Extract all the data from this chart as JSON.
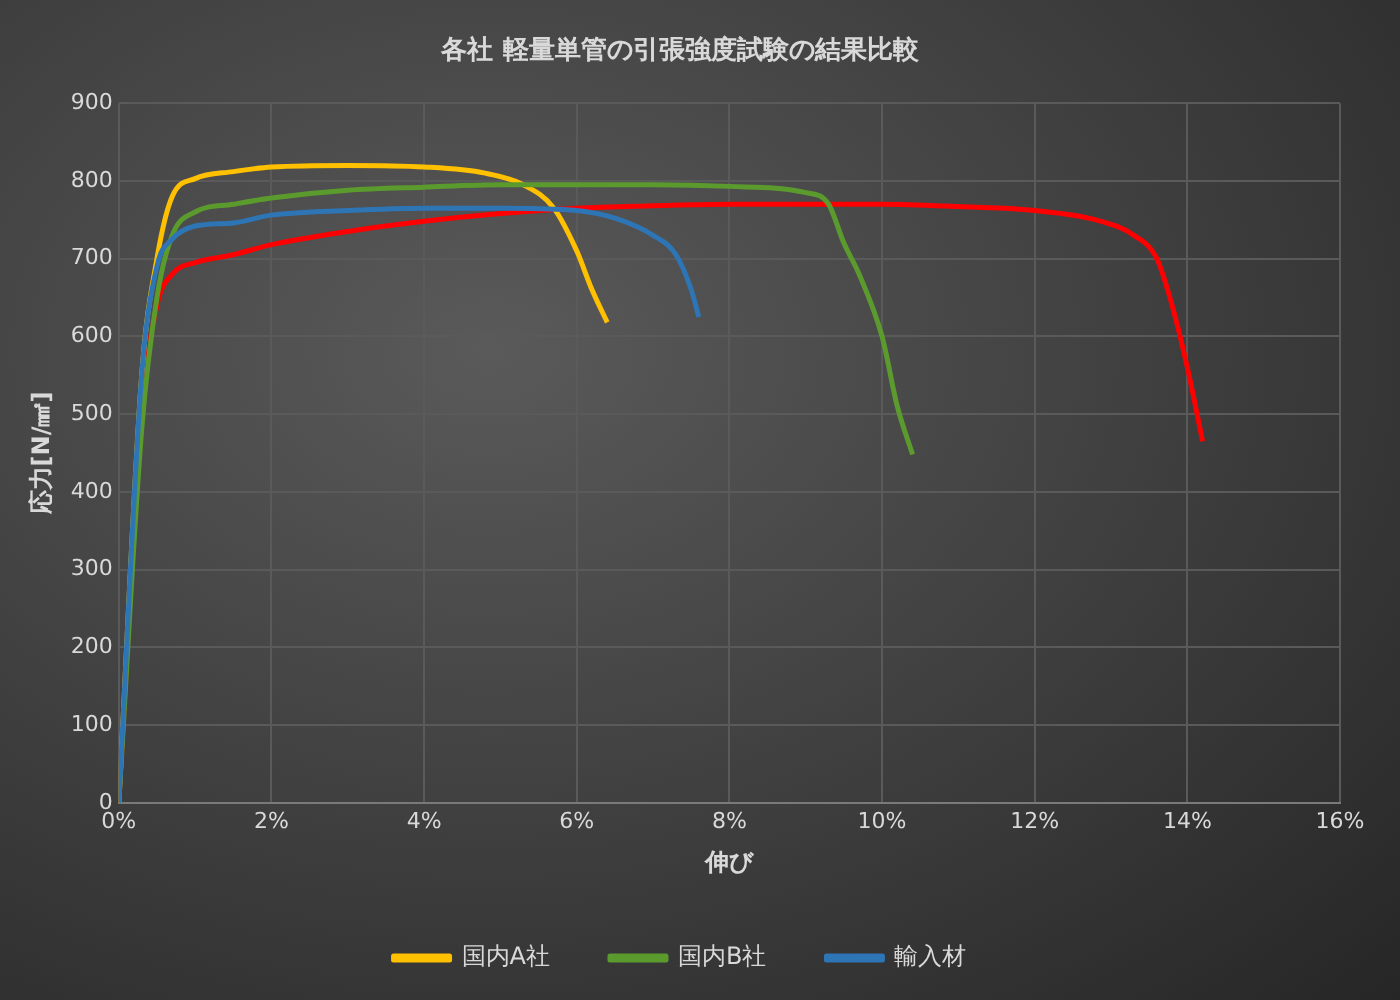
{
  "chart_data": {
    "type": "line",
    "title": "各社 軽量単管の引張強度試験の結果比較",
    "xlabel": "伸び",
    "ylabel": "応力[N/㎟]",
    "xlim": [
      0,
      16
    ],
    "xticks": [
      {
        "value": 0,
        "label": "0%"
      },
      {
        "value": 2,
        "label": "2%"
      },
      {
        "value": 4,
        "label": "4%"
      },
      {
        "value": 6,
        "label": "6%"
      },
      {
        "value": 8,
        "label": "8%"
      },
      {
        "value": 10,
        "label": "10%"
      },
      {
        "value": 12,
        "label": "12%"
      },
      {
        "value": 14,
        "label": "14%"
      },
      {
        "value": 16,
        "label": "16%"
      }
    ],
    "ylim": [
      0,
      900
    ],
    "yticks": [
      0,
      100,
      200,
      300,
      400,
      500,
      600,
      700,
      800,
      900
    ],
    "grid": true,
    "legend": "bottom",
    "marker": "none",
    "series": [
      {
        "color": "#ff0000",
        "x": [
          0,
          0.3,
          0.5,
          0.7,
          1,
          1.5,
          2,
          3,
          4,
          5,
          6,
          7,
          8,
          9,
          10,
          11,
          12,
          12.8,
          13.3,
          13.6,
          13.8,
          14,
          14.2
        ],
        "values": [
          0,
          500,
          640,
          680,
          695,
          705,
          718,
          735,
          748,
          758,
          765,
          768,
          770,
          770,
          770,
          767,
          762,
          750,
          730,
          700,
          640,
          560,
          465
        ]
      },
      {
        "name": "国内A社",
        "color": "#ffc000",
        "x": [
          0,
          0.3,
          0.5,
          0.7,
          1,
          1.5,
          2,
          3,
          4,
          4.8,
          5.3,
          5.7,
          6,
          6.2,
          6.4
        ],
        "values": [
          0,
          550,
          700,
          780,
          803,
          812,
          818,
          820,
          818,
          810,
          795,
          765,
          710,
          660,
          618
        ]
      },
      {
        "name": "国内B社",
        "color": "#5b9b2e",
        "x": [
          0,
          0.3,
          0.5,
          0.7,
          1,
          1.5,
          2,
          3,
          4,
          5,
          6,
          7,
          8,
          9,
          9.3,
          9.5,
          9.7,
          10,
          10.2,
          10.4
        ],
        "values": [
          0,
          480,
          650,
          730,
          760,
          770,
          778,
          788,
          792,
          795,
          795,
          795,
          793,
          785,
          770,
          720,
          680,
          600,
          510,
          448
        ]
      },
      {
        "name": "輸入材",
        "color": "#2e75b6",
        "x": [
          0,
          0.3,
          0.5,
          0.7,
          1,
          1.5,
          2,
          3,
          4,
          5,
          6,
          6.5,
          7,
          7.3,
          7.5,
          7.6
        ],
        "values": [
          0,
          550,
          690,
          725,
          742,
          746,
          756,
          762,
          765,
          765,
          762,
          752,
          730,
          705,
          660,
          625
        ]
      }
    ]
  }
}
